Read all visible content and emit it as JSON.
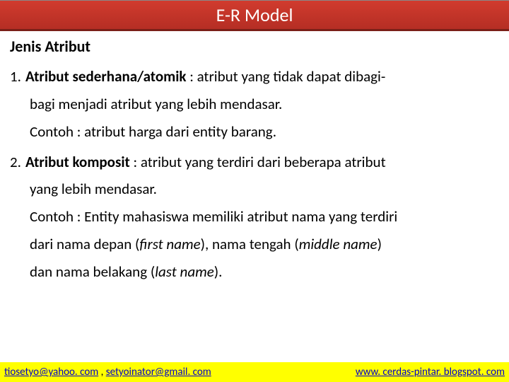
{
  "title_bar": {
    "text": "E-R Model",
    "bg_gradient_top": "#d13b2e",
    "bg_gradient_bottom": "#b52e24",
    "text_color": "#ffffff"
  },
  "subheading": "Jenis Atribut",
  "items": [
    {
      "num": "1.",
      "term": "Atribut sederhana/atomik",
      "def_line1": " : atribut yang tidak dapat dibagi-",
      "def_line2": "bagi menjadi atribut yang lebih mendasar.",
      "example": "Contoh : atribut harga dari entity barang."
    },
    {
      "num": "2.",
      "term": "Atribut komposit",
      "def_line1": " : atribut yang terdiri dari beberapa atribut",
      "def_line2": "yang lebih mendasar.",
      "example_l1": "Contoh : Entity mahasiswa memiliki atribut nama yang terdiri",
      "example_l2a": "dari nama depan (",
      "example_l2i1": "first name",
      "example_l2b": "), nama tengah (",
      "example_l2i2": "middle name",
      "example_l2c": ")",
      "example_l3a": "dan nama belakang (",
      "example_l3i": "last name",
      "example_l3b": ")."
    }
  ],
  "footer": {
    "email1": "tiosetyo@yahoo. com",
    "sep": " , ",
    "email2": "setyoinator@gmail. com",
    "site": "www. cerdas-pintar. blogspot. com",
    "bg_color": "#ffff00",
    "link_color": "#0000cc"
  }
}
